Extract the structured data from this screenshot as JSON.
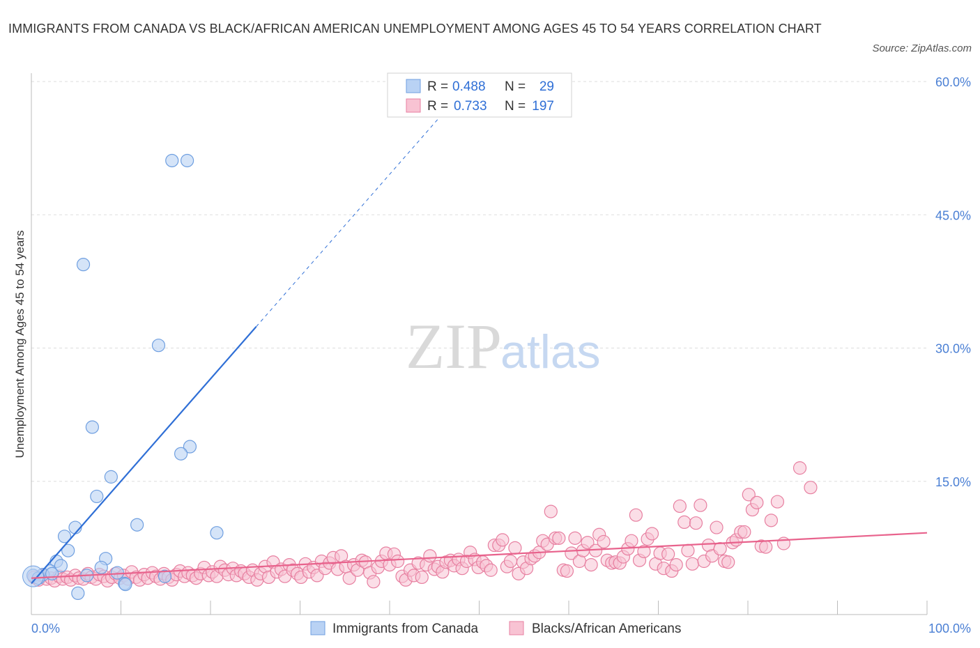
{
  "title": "IMMIGRANTS FROM CANADA VS BLACK/AFRICAN AMERICAN UNEMPLOYMENT AMONG AGES 45 TO 54 YEARS CORRELATION CHART",
  "source": "Source: ZipAtlas.com",
  "watermark": {
    "zip": "ZIP",
    "atlas": "atlas"
  },
  "chart_data": {
    "type": "scatter",
    "title": "IMMIGRANTS FROM CANADA VS BLACK/AFRICAN AMERICAN UNEMPLOYMENT AMONG AGES 45 TO 54 YEARS CORRELATION CHART",
    "xlabel": "",
    "ylabel": "Unemployment Among Ages 45 to 54 years",
    "xlim": [
      0,
      100
    ],
    "ylim": [
      0,
      60
    ],
    "x_tick_labels": {
      "min": "0.0%",
      "max": "100.0%"
    },
    "y_ticks": [
      {
        "value": 15,
        "label": "15.0%"
      },
      {
        "value": 30,
        "label": "30.0%"
      },
      {
        "value": 45,
        "label": "45.0%"
      },
      {
        "value": 60,
        "label": "60.0%"
      }
    ],
    "grid": true,
    "legend_placement": "top-center",
    "stats": [
      {
        "r_label": "R = ",
        "r": "0.488",
        "n_label": "N = ",
        "n": "29"
      },
      {
        "r_label": "R = ",
        "r": "0.733",
        "n_label": "N = ",
        "n": "197"
      }
    ],
    "series": [
      {
        "name": "Immigrants from Canada",
        "color": "#6f9fe0",
        "fill": "#b9d2f4",
        "line_color": "#2f6fd6",
        "trend": {
          "x0": 0,
          "y0": 3.5,
          "x1": 25.1,
          "y1": 32.4,
          "dashed_to_x": 46.5
        },
        "points": [
          [
            15.7,
            51.1
          ],
          [
            17.4,
            51.1
          ],
          [
            5.8,
            39.4
          ],
          [
            14.2,
            30.3
          ],
          [
            6.8,
            21.1
          ],
          [
            17.7,
            18.9
          ],
          [
            16.7,
            18.1
          ],
          [
            8.9,
            15.5
          ],
          [
            7.3,
            13.3
          ],
          [
            11.8,
            10.1
          ],
          [
            4.9,
            9.8
          ],
          [
            20.7,
            9.2
          ],
          [
            3.7,
            8.8
          ],
          [
            4.1,
            7.2
          ],
          [
            8.3,
            6.3
          ],
          [
            2.8,
            6.0
          ],
          [
            3.3,
            5.5
          ],
          [
            7.8,
            5.3
          ],
          [
            9.6,
            4.7
          ],
          [
            2.1,
            4.9
          ],
          [
            1.3,
            4.5
          ],
          [
            6.2,
            4.4
          ],
          [
            14.9,
            4.3
          ],
          [
            10.4,
            3.5
          ],
          [
            10.5,
            3.4
          ],
          [
            5.2,
            2.4
          ],
          [
            0.2,
            4.4
          ],
          [
            0.8,
            4.1
          ],
          [
            2.3,
            4.6
          ]
        ]
      },
      {
        "name": "Blacks/African Americans",
        "color": "#e77fa0",
        "fill": "#f8c3d3",
        "line_color": "#e8628c",
        "trend": {
          "x0": 0,
          "y0": 4.1,
          "x1": 100,
          "y1": 9.2
        },
        "points": [
          [
            0.3,
            4.2
          ],
          [
            0.8,
            3.9
          ],
          [
            1.2,
            4.4
          ],
          [
            1.7,
            4.0
          ],
          [
            2.2,
            4.1
          ],
          [
            2.6,
            3.8
          ],
          [
            3.1,
            4.3
          ],
          [
            3.5,
            4.0
          ],
          [
            4.0,
            4.2
          ],
          [
            4.4,
            3.9
          ],
          [
            4.9,
            4.4
          ],
          [
            5.3,
            4.1
          ],
          [
            5.8,
            4.0
          ],
          [
            6.3,
            4.6
          ],
          [
            6.7,
            4.2
          ],
          [
            7.2,
            4.0
          ],
          [
            7.6,
            4.5
          ],
          [
            8.1,
            4.3
          ],
          [
            8.5,
            3.8
          ],
          [
            9.0,
            4.2
          ],
          [
            9.4,
            4.6
          ],
          [
            9.9,
            4.1
          ],
          [
            10.3,
            4.4
          ],
          [
            10.8,
            4.0
          ],
          [
            11.2,
            4.8
          ],
          [
            11.7,
            4.2
          ],
          [
            12.1,
            3.9
          ],
          [
            12.6,
            4.5
          ],
          [
            13.0,
            4.1
          ],
          [
            13.5,
            4.7
          ],
          [
            13.9,
            4.3
          ],
          [
            14.4,
            4.0
          ],
          [
            14.8,
            4.6
          ],
          [
            15.3,
            4.2
          ],
          [
            15.7,
            3.9
          ],
          [
            16.2,
            4.5
          ],
          [
            16.6,
            4.9
          ],
          [
            17.1,
            4.3
          ],
          [
            17.5,
            4.7
          ],
          [
            18.0,
            4.4
          ],
          [
            18.4,
            4.1
          ],
          [
            18.9,
            4.6
          ],
          [
            19.3,
            5.3
          ],
          [
            19.8,
            4.4
          ],
          [
            20.2,
            4.8
          ],
          [
            20.7,
            4.3
          ],
          [
            21.1,
            5.4
          ],
          [
            21.6,
            5.0
          ],
          [
            22.0,
            4.5
          ],
          [
            22.5,
            5.2
          ],
          [
            22.9,
            4.4
          ],
          [
            23.4,
            4.9
          ],
          [
            23.8,
            4.6
          ],
          [
            24.3,
            4.2
          ],
          [
            24.7,
            5.0
          ],
          [
            25.2,
            3.9
          ],
          [
            25.6,
            4.6
          ],
          [
            26.1,
            5.4
          ],
          [
            26.5,
            4.2
          ],
          [
            27.0,
            5.9
          ],
          [
            27.4,
            4.8
          ],
          [
            27.9,
            5.1
          ],
          [
            28.3,
            4.3
          ],
          [
            28.8,
            5.6
          ],
          [
            29.2,
            5.0
          ],
          [
            29.7,
            4.6
          ],
          [
            30.1,
            4.2
          ],
          [
            30.6,
            5.7
          ],
          [
            31.0,
            4.8
          ],
          [
            31.5,
            5.3
          ],
          [
            31.9,
            4.4
          ],
          [
            32.4,
            6.0
          ],
          [
            32.8,
            5.2
          ],
          [
            33.3,
            5.8
          ],
          [
            33.7,
            6.4
          ],
          [
            34.2,
            5.1
          ],
          [
            34.6,
            6.6
          ],
          [
            35.1,
            5.4
          ],
          [
            35.5,
            4.1
          ],
          [
            36.0,
            5.6
          ],
          [
            36.4,
            5.0
          ],
          [
            36.9,
            6.1
          ],
          [
            37.3,
            5.9
          ],
          [
            37.8,
            4.7
          ],
          [
            38.2,
            3.7
          ],
          [
            38.7,
            5.3
          ],
          [
            39.1,
            6.0
          ],
          [
            39.6,
            6.9
          ],
          [
            40.0,
            5.6
          ],
          [
            40.5,
            6.8
          ],
          [
            40.9,
            6.0
          ],
          [
            41.4,
            4.3
          ],
          [
            41.8,
            3.9
          ],
          [
            42.3,
            5.0
          ],
          [
            42.7,
            4.4
          ],
          [
            43.2,
            5.8
          ],
          [
            43.6,
            4.2
          ],
          [
            44.1,
            5.6
          ],
          [
            44.5,
            6.6
          ],
          [
            45.0,
            5.1
          ],
          [
            45.4,
            5.4
          ],
          [
            45.9,
            4.8
          ],
          [
            46.3,
            5.9
          ],
          [
            46.8,
            6.1
          ],
          [
            47.2,
            5.5
          ],
          [
            47.7,
            6.2
          ],
          [
            48.1,
            5.2
          ],
          [
            48.6,
            6.0
          ],
          [
            49.0,
            7.0
          ],
          [
            49.5,
            6.2
          ],
          [
            49.9,
            5.3
          ],
          [
            50.4,
            5.9
          ],
          [
            50.8,
            5.5
          ],
          [
            51.3,
            5.0
          ],
          [
            51.7,
            7.8
          ],
          [
            52.2,
            7.8
          ],
          [
            52.6,
            8.4
          ],
          [
            53.1,
            5.4
          ],
          [
            53.5,
            6.0
          ],
          [
            54.0,
            7.5
          ],
          [
            54.4,
            4.6
          ],
          [
            54.9,
            5.9
          ],
          [
            55.3,
            5.2
          ],
          [
            55.8,
            6.3
          ],
          [
            56.2,
            6.6
          ],
          [
            56.7,
            7.0
          ],
          [
            57.1,
            8.3
          ],
          [
            57.6,
            7.9
          ],
          [
            58.0,
            11.6
          ],
          [
            58.5,
            8.6
          ],
          [
            58.9,
            8.6
          ],
          [
            59.4,
            5.0
          ],
          [
            59.8,
            4.9
          ],
          [
            60.3,
            6.9
          ],
          [
            60.7,
            8.6
          ],
          [
            61.2,
            6.0
          ],
          [
            61.6,
            7.2
          ],
          [
            62.1,
            8.1
          ],
          [
            62.5,
            5.6
          ],
          [
            63.0,
            7.2
          ],
          [
            63.4,
            9.0
          ],
          [
            63.9,
            8.2
          ],
          [
            64.3,
            6.1
          ],
          [
            64.8,
            5.8
          ],
          [
            65.2,
            5.9
          ],
          [
            65.7,
            5.8
          ],
          [
            66.1,
            6.5
          ],
          [
            66.6,
            7.4
          ],
          [
            67.0,
            8.3
          ],
          [
            67.5,
            11.2
          ],
          [
            67.9,
            6.1
          ],
          [
            68.4,
            7.1
          ],
          [
            68.8,
            8.5
          ],
          [
            69.3,
            9.1
          ],
          [
            69.7,
            5.7
          ],
          [
            70.2,
            6.9
          ],
          [
            70.6,
            5.2
          ],
          [
            71.1,
            6.8
          ],
          [
            71.5,
            4.9
          ],
          [
            72.0,
            5.6
          ],
          [
            72.4,
            12.2
          ],
          [
            72.9,
            10.4
          ],
          [
            73.3,
            7.2
          ],
          [
            73.8,
            5.7
          ],
          [
            74.2,
            10.3
          ],
          [
            74.7,
            12.3
          ],
          [
            75.1,
            6.0
          ],
          [
            75.6,
            7.8
          ],
          [
            76.0,
            6.6
          ],
          [
            76.5,
            9.8
          ],
          [
            76.9,
            7.4
          ],
          [
            77.4,
            6.0
          ],
          [
            77.8,
            5.9
          ],
          [
            78.3,
            8.1
          ],
          [
            78.7,
            8.4
          ],
          [
            79.2,
            9.3
          ],
          [
            79.6,
            9.3
          ],
          [
            80.1,
            13.5
          ],
          [
            80.5,
            11.8
          ],
          [
            81.0,
            12.6
          ],
          [
            81.5,
            7.7
          ],
          [
            82.0,
            7.6
          ],
          [
            82.6,
            10.6
          ],
          [
            83.3,
            12.7
          ],
          [
            84.0,
            8.0
          ],
          [
            85.8,
            16.5
          ],
          [
            87.0,
            14.3
          ]
        ]
      }
    ]
  },
  "legend": [
    "Immigrants from Canada",
    "Blacks/African Americans"
  ]
}
